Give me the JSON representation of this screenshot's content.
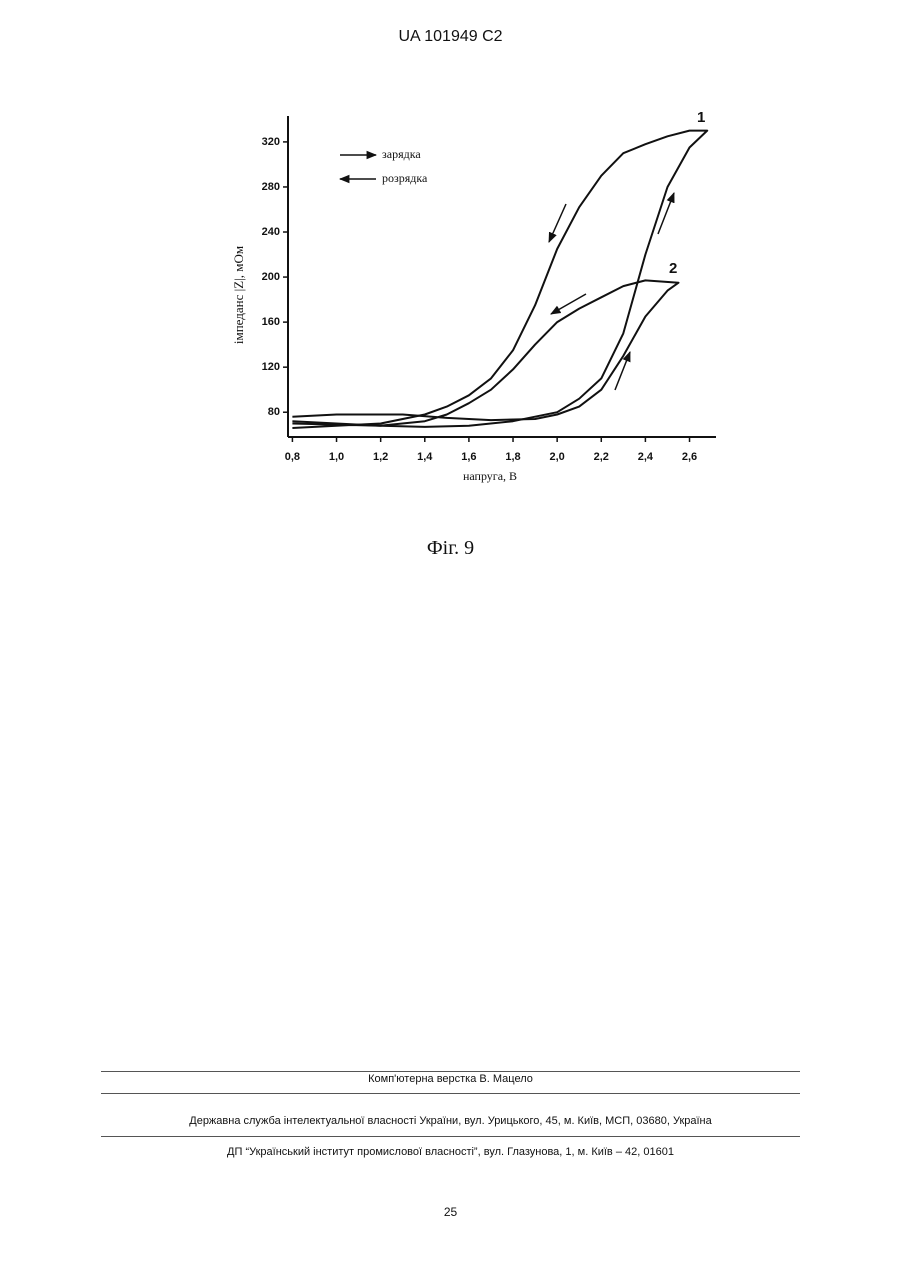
{
  "header": {
    "title": "UA   101949   C2"
  },
  "chart_data": {
    "type": "line",
    "x_label": "напруга, В",
    "y_label": "імпеданс |Z|, мОм",
    "legend": [
      "зарядка",
      "розрядка"
    ],
    "xlim": [
      0.78,
      2.72
    ],
    "ylim": [
      58,
      343
    ],
    "xticks": [
      {
        "value": 0.8,
        "label": "0,8"
      },
      {
        "value": 1.0,
        "label": "1,0"
      },
      {
        "value": 1.2,
        "label": "1,2"
      },
      {
        "value": 1.4,
        "label": "1,4"
      },
      {
        "value": 1.6,
        "label": "1,6"
      },
      {
        "value": 1.8,
        "label": "1,8"
      },
      {
        "value": 2.0,
        "label": "2,0"
      },
      {
        "value": 2.2,
        "label": "2,2"
      },
      {
        "value": 2.4,
        "label": "2,4"
      },
      {
        "value": 2.6,
        "label": "2,6"
      }
    ],
    "yticks": [
      80,
      120,
      160,
      200,
      240,
      280,
      320
    ],
    "grid": false,
    "series": [
      {
        "name": "1",
        "color": "#111111",
        "x": [
          0.8,
          1.0,
          1.2,
          1.4,
          1.6,
          1.8,
          2.0,
          2.1,
          2.2,
          2.3,
          2.4,
          2.5,
          2.6,
          2.68,
          2.6,
          2.5,
          2.4,
          2.3,
          2.2,
          2.1,
          2.0,
          1.9,
          1.8,
          1.7,
          1.6,
          1.5,
          1.4,
          1.2,
          1.0,
          0.8
        ],
        "values": [
          70,
          69,
          68,
          67,
          68,
          72,
          80,
          92,
          110,
          150,
          220,
          280,
          315,
          330,
          330,
          325,
          318,
          310,
          290,
          262,
          225,
          175,
          135,
          110,
          95,
          85,
          78,
          70,
          68,
          66
        ]
      },
      {
        "name": "2",
        "color": "#111111",
        "x": [
          0.8,
          1.0,
          1.2,
          1.3,
          1.5,
          1.7,
          1.9,
          2.0,
          2.1,
          2.2,
          2.3,
          2.4,
          2.5,
          2.55,
          2.4,
          2.3,
          2.2,
          2.1,
          2.0,
          1.9,
          1.8,
          1.7,
          1.6,
          1.5,
          1.4,
          1.2,
          1.0,
          0.8
        ],
        "values": [
          76,
          78,
          78,
          78,
          75,
          73,
          74,
          78,
          85,
          100,
          130,
          165,
          188,
          195,
          197,
          192,
          182,
          172,
          160,
          140,
          118,
          100,
          88,
          78,
          72,
          68,
          70,
          72
        ]
      }
    ]
  },
  "caption": "Фіг. 9",
  "footer": {
    "credit": "Комп'ютерна верстка В. Мацело",
    "address1": "Державна служба інтелектуальної власності України, вул. Урицького, 45, м. Київ, МСП, 03680, Україна",
    "address2": "ДП “Український інститут промислової власності”, вул. Глазунова, 1, м. Київ – 42, 01601"
  },
  "page_number": "25"
}
